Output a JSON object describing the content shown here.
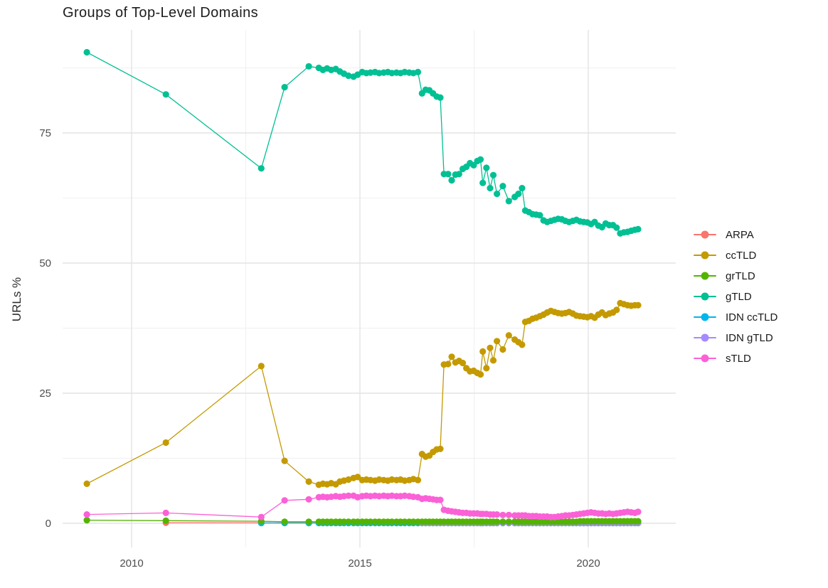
{
  "title": "Groups of Top-Level Domains",
  "colors": {
    "background": "#ffffff",
    "grid_major": "#e3e3e3",
    "grid_minor": "#f0f0f0",
    "tick_label": "#4d4d4d",
    "title_text": "#1d1d1d",
    "legend_text": "#191919"
  },
  "chart_data": {
    "type": "line",
    "title": "Groups of Top-Level Domains",
    "xlabel": "",
    "ylabel": "URLs %",
    "grid": true,
    "legend_position": "right",
    "xlim": [
      2008.5,
      2021.9
    ],
    "ylim": [
      -4.5,
      95
    ],
    "x_ticks": [
      2010,
      2015,
      2020
    ],
    "x_tick_labels": [
      "2010",
      "2015",
      "2020"
    ],
    "x_minor_ticks": [
      2012.5,
      2017.5
    ],
    "y_ticks": [
      0,
      25,
      50,
      75
    ],
    "y_tick_labels": [
      "0",
      "25",
      "50",
      "75"
    ],
    "y_minor_ticks": [
      12.5,
      37.5,
      62.5,
      87.5
    ],
    "x": [
      2009.02,
      2010.75,
      2012.84,
      2013.35,
      2013.88,
      2014.1,
      2014.19,
      2014.28,
      2014.37,
      2014.47,
      2014.56,
      2014.65,
      2014.75,
      2014.86,
      2014.95,
      2015.05,
      2015.14,
      2015.23,
      2015.33,
      2015.42,
      2015.52,
      2015.61,
      2015.7,
      2015.8,
      2015.89,
      2015.98,
      2016.08,
      2016.17,
      2016.27,
      2016.36,
      2016.44,
      2016.52,
      2016.6,
      2016.68,
      2016.76,
      2016.84,
      2016.93,
      2017.01,
      2017.09,
      2017.17,
      2017.25,
      2017.33,
      2017.41,
      2017.49,
      2017.57,
      2017.64,
      2017.69,
      2017.77,
      2017.85,
      2017.92,
      2018.0,
      2018.13,
      2018.26,
      2018.39,
      2018.47,
      2018.55,
      2018.62,
      2018.7,
      2018.78,
      2018.86,
      2018.94,
      2019.02,
      2019.1,
      2019.18,
      2019.26,
      2019.34,
      2019.42,
      2019.5,
      2019.58,
      2019.66,
      2019.74,
      2019.82,
      2019.9,
      2019.98,
      2020.06,
      2020.14,
      2020.22,
      2020.3,
      2020.38,
      2020.46,
      2020.54,
      2020.62,
      2020.7,
      2020.78,
      2020.86,
      2020.94,
      2021.02,
      2021.09
    ],
    "series": [
      {
        "name": "ARPA",
        "color": "#F8766D",
        "start": 1,
        "fill_value": 0.1
      },
      {
        "name": "ccTLD",
        "color": "#C49A00",
        "start": 0,
        "values": [
          7.6,
          15.5,
          30.2,
          12.0,
          8.0,
          7.4,
          7.6,
          7.5,
          7.7,
          7.5,
          8.0,
          8.2,
          8.4,
          8.7,
          8.9,
          8.3,
          8.4,
          8.3,
          8.2,
          8.4,
          8.3,
          8.2,
          8.4,
          8.3,
          8.4,
          8.2,
          8.3,
          8.5,
          8.3,
          13.3,
          12.8,
          13.0,
          13.7,
          14.2,
          14.3,
          30.5,
          30.6,
          32.0,
          30.9,
          31.2,
          30.8,
          29.8,
          29.2,
          29.3,
          28.9,
          28.6,
          33.0,
          29.8,
          33.7,
          31.3,
          35.0,
          33.4,
          36.1,
          35.3,
          34.8,
          34.3,
          38.7,
          38.9,
          39.3,
          39.5,
          39.8,
          40.1,
          40.5,
          40.8,
          40.6,
          40.4,
          40.3,
          40.4,
          40.6,
          40.3,
          39.9,
          39.8,
          39.7,
          39.6,
          39.8,
          39.5,
          40.1,
          40.5,
          40.0,
          40.3,
          40.5,
          41.0,
          42.3,
          42.1,
          41.9,
          41.8,
          41.9,
          41.9
        ]
      },
      {
        "name": "grTLD",
        "color": "#53B400",
        "start": 0,
        "values": [
          0.6,
          0.5,
          0.4,
          0.3,
          0.3,
          0.3,
          0.3,
          0.3,
          0.3,
          0.3,
          0.3,
          0.3,
          0.3,
          0.3,
          0.3,
          0.3,
          0.3,
          0.3,
          0.3,
          0.3,
          0.3,
          0.3,
          0.3,
          0.3,
          0.3,
          0.3,
          0.3,
          0.3,
          0.3,
          0.3,
          0.3,
          0.3,
          0.3,
          0.3,
          0.3,
          0.3,
          0.3,
          0.3,
          0.3,
          0.3,
          0.3,
          0.3,
          0.3,
          0.3,
          0.3,
          0.3,
          0.3,
          0.3,
          0.3,
          0.3,
          0.3,
          0.3,
          0.3,
          0.3,
          0.3,
          0.3,
          0.3,
          0.3,
          0.3,
          0.3,
          0.3,
          0.3,
          0.3,
          0.3,
          0.3,
          0.3,
          0.3,
          0.3,
          0.3,
          0.3,
          0.3,
          0.4,
          0.4,
          0.4,
          0.4,
          0.4,
          0.4,
          0.4,
          0.4,
          0.4,
          0.4,
          0.4,
          0.4,
          0.4,
          0.4,
          0.4,
          0.4,
          0.4
        ]
      },
      {
        "name": "gTLD",
        "color": "#00C094",
        "start": 0,
        "values": [
          90.5,
          82.4,
          68.2,
          83.8,
          87.8,
          87.5,
          87.1,
          87.4,
          87.1,
          87.3,
          86.8,
          86.4,
          86.0,
          85.8,
          86.2,
          86.7,
          86.5,
          86.6,
          86.7,
          86.5,
          86.6,
          86.7,
          86.5,
          86.6,
          86.5,
          86.7,
          86.6,
          86.5,
          86.7,
          82.6,
          83.3,
          83.2,
          82.6,
          82.0,
          81.8,
          67.1,
          67.1,
          65.9,
          67.0,
          67.1,
          68.1,
          68.5,
          69.2,
          68.8,
          69.6,
          69.9,
          65.4,
          68.3,
          64.4,
          66.9,
          63.3,
          64.8,
          61.9,
          62.7,
          63.3,
          64.4,
          60.1,
          59.8,
          59.4,
          59.3,
          59.2,
          58.2,
          57.9,
          58.1,
          58.3,
          58.5,
          58.4,
          58.1,
          57.9,
          58.1,
          58.3,
          58.0,
          57.9,
          57.8,
          57.5,
          57.9,
          57.2,
          56.9,
          57.6,
          57.3,
          57.3,
          56.8,
          55.7,
          55.9,
          56.0,
          56.2,
          56.4,
          56.5
        ]
      },
      {
        "name": "IDN ccTLD",
        "color": "#00B6EB",
        "start": 2,
        "fill_value": 0.05
      },
      {
        "name": "IDN gTLD",
        "color": "#A58AFF",
        "start": 29,
        "fill_value": 0.05
      },
      {
        "name": "sTLD",
        "color": "#FB61D7",
        "start": 0,
        "values": [
          1.7,
          2.0,
          1.2,
          4.4,
          4.6,
          5.0,
          5.1,
          5.0,
          5.1,
          5.2,
          5.1,
          5.2,
          5.3,
          5.3,
          5.0,
          5.2,
          5.3,
          5.2,
          5.3,
          5.2,
          5.3,
          5.2,
          5.3,
          5.2,
          5.2,
          5.3,
          5.2,
          5.1,
          5.0,
          4.7,
          4.8,
          4.7,
          4.6,
          4.5,
          4.5,
          2.6,
          2.4,
          2.3,
          2.2,
          2.1,
          2.0,
          2.0,
          1.9,
          1.9,
          1.9,
          1.8,
          1.8,
          1.8,
          1.7,
          1.7,
          1.7,
          1.6,
          1.6,
          1.5,
          1.5,
          1.5,
          1.5,
          1.4,
          1.4,
          1.4,
          1.3,
          1.3,
          1.3,
          1.2,
          1.2,
          1.3,
          1.4,
          1.5,
          1.5,
          1.6,
          1.7,
          1.8,
          1.9,
          2.0,
          2.1,
          2.0,
          1.9,
          1.9,
          1.8,
          1.9,
          1.8,
          1.9,
          2.0,
          2.1,
          2.2,
          2.1,
          2.0,
          2.2
        ]
      }
    ]
  },
  "legend": {
    "items": [
      "ARPA",
      "ccTLD",
      "grTLD",
      "gTLD",
      "IDN ccTLD",
      "IDN gTLD",
      "sTLD"
    ]
  }
}
